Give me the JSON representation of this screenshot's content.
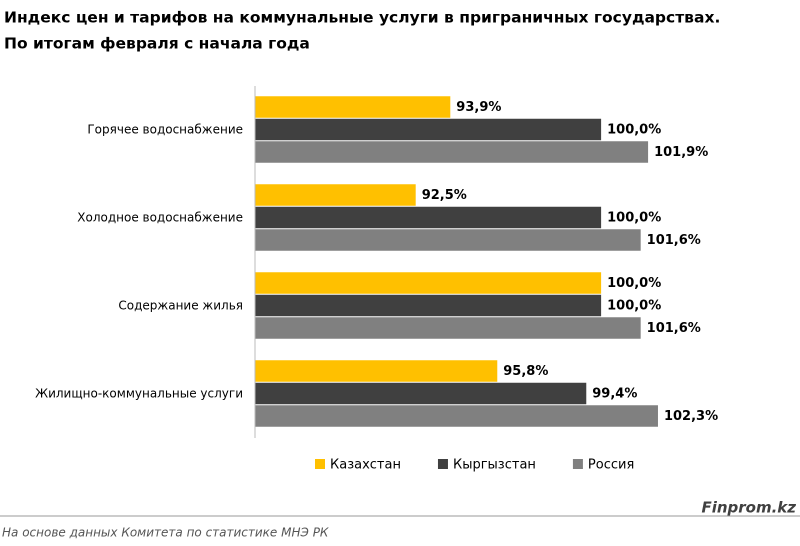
{
  "chart_data": {
    "type": "bar",
    "orientation": "horizontal",
    "title": "Индекс цен и тарифов на коммунальные услуги в приграничных государствах.",
    "subtitle": "По итогам февраля с начала года",
    "categories": [
      "Горячее водоснабжение",
      "Холодное водоснабжение",
      "Содержание жилья",
      "Жилищно-коммунальные услуги"
    ],
    "series": [
      {
        "name": "Казахстан",
        "color": "#FFC000",
        "values": [
          93.9,
          92.5,
          100.0,
          95.8
        ],
        "value_labels": [
          "93,9%",
          "92,5%",
          "100,0%",
          "95,8%"
        ]
      },
      {
        "name": "Кыргызстан",
        "color": "#404040",
        "values": [
          100.0,
          100.0,
          100.0,
          99.4
        ],
        "value_labels": [
          "100,0%",
          "100,0%",
          "100,0%",
          "99,4%"
        ]
      },
      {
        "name": "Россия",
        "color": "#808080",
        "values": [
          101.9,
          101.6,
          101.6,
          102.3
        ],
        "value_labels": [
          "101,9%",
          "101,6%",
          "101,6%",
          "102,3%"
        ]
      }
    ],
    "xlim": [
      86,
      104
    ],
    "legend": "bottom",
    "source": "На основе данных  Комитета по статистике МНЭ РК",
    "watermark": "Finprom.kz"
  }
}
